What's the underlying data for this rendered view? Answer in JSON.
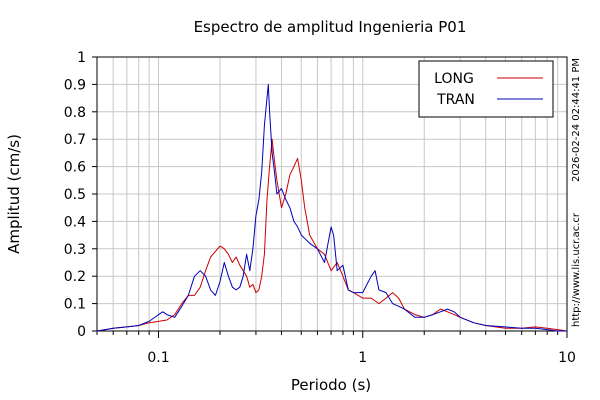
{
  "chart_data": {
    "type": "line",
    "title": "Espectro de amplitud Ingenieria P01",
    "xlabel": "Periodo (s)",
    "ylabel": "Amplitud (cm/s)",
    "x_scale": "log",
    "xlim": [
      0.05,
      10
    ],
    "ylim": [
      0,
      1
    ],
    "x_ticks": [
      {
        "value": 0.1,
        "label": "0.1"
      },
      {
        "value": 1,
        "label": "1"
      },
      {
        "value": 10,
        "label": "10"
      }
    ],
    "y_ticks": [
      {
        "value": 0,
        "label": "0"
      },
      {
        "value": 0.1,
        "label": "0.1"
      },
      {
        "value": 0.2,
        "label": "0.2"
      },
      {
        "value": 0.3,
        "label": "0.3"
      },
      {
        "value": 0.4,
        "label": "0.4"
      },
      {
        "value": 0.5,
        "label": "0.5"
      },
      {
        "value": 0.6,
        "label": "0.6"
      },
      {
        "value": 0.7,
        "label": "0.7"
      },
      {
        "value": 0.8,
        "label": "0.8"
      },
      {
        "value": 0.9,
        "label": "0.9"
      },
      {
        "value": 1,
        "label": "1"
      }
    ],
    "grid": true,
    "legend": "top-right",
    "series": [
      {
        "name": "LONG",
        "color": "#cc0000",
        "points": [
          [
            0.05,
            0.0
          ],
          [
            0.055,
            0.005
          ],
          [
            0.06,
            0.01
          ],
          [
            0.07,
            0.015
          ],
          [
            0.08,
            0.02
          ],
          [
            0.09,
            0.03
          ],
          [
            0.1,
            0.035
          ],
          [
            0.11,
            0.04
          ],
          [
            0.12,
            0.06
          ],
          [
            0.13,
            0.1
          ],
          [
            0.14,
            0.13
          ],
          [
            0.15,
            0.13
          ],
          [
            0.16,
            0.16
          ],
          [
            0.17,
            0.22
          ],
          [
            0.18,
            0.27
          ],
          [
            0.19,
            0.29
          ],
          [
            0.2,
            0.31
          ],
          [
            0.21,
            0.3
          ],
          [
            0.22,
            0.28
          ],
          [
            0.23,
            0.25
          ],
          [
            0.24,
            0.27
          ],
          [
            0.25,
            0.24
          ],
          [
            0.26,
            0.22
          ],
          [
            0.27,
            0.2
          ],
          [
            0.28,
            0.16
          ],
          [
            0.29,
            0.17
          ],
          [
            0.3,
            0.14
          ],
          [
            0.31,
            0.15
          ],
          [
            0.32,
            0.2
          ],
          [
            0.33,
            0.28
          ],
          [
            0.34,
            0.48
          ],
          [
            0.35,
            0.6
          ],
          [
            0.36,
            0.7
          ],
          [
            0.37,
            0.62
          ],
          [
            0.38,
            0.55
          ],
          [
            0.4,
            0.45
          ],
          [
            0.42,
            0.5
          ],
          [
            0.44,
            0.57
          ],
          [
            0.46,
            0.6
          ],
          [
            0.48,
            0.63
          ],
          [
            0.5,
            0.55
          ],
          [
            0.52,
            0.45
          ],
          [
            0.55,
            0.35
          ],
          [
            0.6,
            0.3
          ],
          [
            0.65,
            0.28
          ],
          [
            0.7,
            0.22
          ],
          [
            0.75,
            0.25
          ],
          [
            0.8,
            0.2
          ],
          [
            0.85,
            0.15
          ],
          [
            0.9,
            0.14
          ],
          [
            1.0,
            0.12
          ],
          [
            1.1,
            0.12
          ],
          [
            1.2,
            0.1
          ],
          [
            1.3,
            0.12
          ],
          [
            1.4,
            0.14
          ],
          [
            1.5,
            0.12
          ],
          [
            1.6,
            0.08
          ],
          [
            1.8,
            0.06
          ],
          [
            2.0,
            0.05
          ],
          [
            2.2,
            0.06
          ],
          [
            2.4,
            0.08
          ],
          [
            2.6,
            0.07
          ],
          [
            2.8,
            0.06
          ],
          [
            3.0,
            0.05
          ],
          [
            3.5,
            0.03
          ],
          [
            4.0,
            0.02
          ],
          [
            5.0,
            0.01
          ],
          [
            6.0,
            0.01
          ],
          [
            7.0,
            0.015
          ],
          [
            8.0,
            0.01
          ],
          [
            9.0,
            0.005
          ],
          [
            10.0,
            0.0
          ]
        ]
      },
      {
        "name": "TRAN",
        "color": "#0000bb",
        "points": [
          [
            0.05,
            0.0
          ],
          [
            0.055,
            0.005
          ],
          [
            0.06,
            0.01
          ],
          [
            0.07,
            0.015
          ],
          [
            0.08,
            0.02
          ],
          [
            0.09,
            0.035
          ],
          [
            0.1,
            0.06
          ],
          [
            0.105,
            0.07
          ],
          [
            0.11,
            0.06
          ],
          [
            0.12,
            0.05
          ],
          [
            0.13,
            0.09
          ],
          [
            0.14,
            0.13
          ],
          [
            0.15,
            0.2
          ],
          [
            0.16,
            0.22
          ],
          [
            0.17,
            0.2
          ],
          [
            0.18,
            0.15
          ],
          [
            0.19,
            0.13
          ],
          [
            0.2,
            0.18
          ],
          [
            0.21,
            0.25
          ],
          [
            0.22,
            0.2
          ],
          [
            0.23,
            0.16
          ],
          [
            0.24,
            0.15
          ],
          [
            0.25,
            0.16
          ],
          [
            0.26,
            0.2
          ],
          [
            0.27,
            0.28
          ],
          [
            0.28,
            0.22
          ],
          [
            0.29,
            0.3
          ],
          [
            0.3,
            0.42
          ],
          [
            0.31,
            0.48
          ],
          [
            0.32,
            0.58
          ],
          [
            0.33,
            0.75
          ],
          [
            0.34,
            0.85
          ],
          [
            0.345,
            0.9
          ],
          [
            0.35,
            0.8
          ],
          [
            0.36,
            0.65
          ],
          [
            0.37,
            0.58
          ],
          [
            0.38,
            0.5
          ],
          [
            0.4,
            0.52
          ],
          [
            0.42,
            0.48
          ],
          [
            0.44,
            0.45
          ],
          [
            0.46,
            0.4
          ],
          [
            0.48,
            0.38
          ],
          [
            0.5,
            0.35
          ],
          [
            0.55,
            0.32
          ],
          [
            0.6,
            0.3
          ],
          [
            0.65,
            0.25
          ],
          [
            0.7,
            0.38
          ],
          [
            0.72,
            0.35
          ],
          [
            0.75,
            0.22
          ],
          [
            0.8,
            0.24
          ],
          [
            0.85,
            0.15
          ],
          [
            0.9,
            0.14
          ],
          [
            1.0,
            0.14
          ],
          [
            1.1,
            0.2
          ],
          [
            1.15,
            0.22
          ],
          [
            1.2,
            0.15
          ],
          [
            1.3,
            0.14
          ],
          [
            1.4,
            0.1
          ],
          [
            1.5,
            0.09
          ],
          [
            1.6,
            0.08
          ],
          [
            1.8,
            0.05
          ],
          [
            2.0,
            0.05
          ],
          [
            2.2,
            0.06
          ],
          [
            2.4,
            0.07
          ],
          [
            2.6,
            0.08
          ],
          [
            2.8,
            0.07
          ],
          [
            3.0,
            0.05
          ],
          [
            3.5,
            0.03
          ],
          [
            4.0,
            0.02
          ],
          [
            5.0,
            0.015
          ],
          [
            6.0,
            0.01
          ],
          [
            7.0,
            0.01
          ],
          [
            8.0,
            0.005
          ],
          [
            9.0,
            0.0
          ],
          [
            10.0,
            0.0
          ]
        ]
      }
    ]
  },
  "side_labels": {
    "timestamp": "2026-02-24 02:44:41 PM",
    "url": "http://www.lis.ucr.ac.cr"
  }
}
